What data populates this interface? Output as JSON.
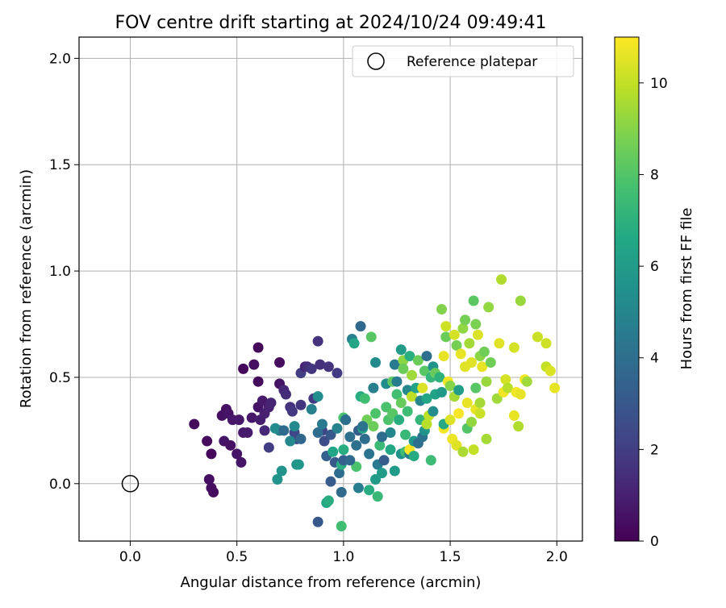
{
  "chart_data": {
    "type": "scatter",
    "title": "FOV centre drift starting at 2024/10/24 09:49:41",
    "xlabel": "Angular distance from reference (arcmin)",
    "ylabel": "Rotation from reference (arcmin)",
    "xlim": [
      -0.24,
      2.12
    ],
    "ylim": [
      -0.27,
      2.1
    ],
    "x_ticks": [
      "0.0",
      "0.5",
      "1.0",
      "1.5",
      "2.0"
    ],
    "y_ticks": [
      "0.0",
      "0.5",
      "1.0",
      "1.5",
      "2.0"
    ],
    "grid": true,
    "legend": {
      "placement": "top-right",
      "entries": [
        "Reference platepar"
      ]
    },
    "colorbar": {
      "label": "Hours from first FF file",
      "range": [
        0,
        11
      ],
      "ticks": [
        "0",
        "2",
        "4",
        "6",
        "8",
        "10"
      ],
      "colormap": "viridis"
    },
    "reference_point": {
      "x": 0.0,
      "y": 0.0
    },
    "series": [
      {
        "values": [
          [
            0.3,
            0.28,
            0.3
          ],
          [
            0.36,
            0.2,
            0.3
          ],
          [
            0.37,
            0.02,
            0.4
          ],
          [
            0.38,
            -0.02,
            0.4
          ],
          [
            0.39,
            -0.04,
            0.3
          ],
          [
            0.38,
            0.14,
            0.2
          ],
          [
            0.43,
            0.32,
            0.5
          ],
          [
            0.44,
            0.2,
            0.6
          ],
          [
            0.45,
            0.35,
            0.4
          ],
          [
            0.46,
            0.33,
            0.6
          ],
          [
            0.47,
            0.18,
            0.5
          ],
          [
            0.48,
            0.3,
            0.7
          ],
          [
            0.5,
            0.14,
            0.6
          ],
          [
            0.51,
            0.3,
            0.7
          ],
          [
            0.52,
            0.1,
            0.6
          ],
          [
            0.53,
            0.24,
            0.8
          ],
          [
            0.53,
            0.54,
            0.2
          ],
          [
            0.55,
            0.24,
            0.8
          ],
          [
            0.57,
            0.31,
            0.7
          ],
          [
            0.58,
            0.56,
            0.4
          ],
          [
            0.6,
            0.64,
            0.2
          ],
          [
            0.6,
            0.48,
            0.3
          ],
          [
            0.6,
            0.36,
            0.6
          ],
          [
            0.61,
            0.3,
            0.9
          ],
          [
            0.62,
            0.39,
            0.8
          ],
          [
            0.63,
            0.33,
            1.0
          ],
          [
            0.63,
            0.25,
            1.2
          ],
          [
            0.65,
            0.36,
            1.0
          ],
          [
            0.66,
            0.38,
            1.1
          ],
          [
            0.65,
            0.17,
            2.0
          ],
          [
            0.7,
            0.57,
            0.3
          ],
          [
            0.7,
            0.47,
            0.6
          ],
          [
            0.72,
            0.44,
            1.2
          ],
          [
            0.73,
            0.42,
            1.4
          ],
          [
            0.75,
            0.36,
            1.6
          ],
          [
            0.76,
            0.34,
            1.8
          ],
          [
            0.77,
            0.24,
            2.3
          ],
          [
            0.78,
            0.21,
            2.4
          ],
          [
            0.8,
            0.37,
            1.7
          ],
          [
            0.8,
            0.52,
            2.0
          ],
          [
            0.82,
            0.55,
            1.0
          ],
          [
            0.83,
            0.55,
            1.4
          ],
          [
            0.85,
            0.54,
            1.7
          ],
          [
            0.86,
            0.4,
            1.9
          ],
          [
            0.88,
            0.67,
            1.6
          ],
          [
            0.89,
            0.56,
            1.5
          ],
          [
            0.9,
            0.25,
            2.3
          ],
          [
            0.91,
            0.2,
            2.5
          ],
          [
            0.93,
            0.55,
            1.6
          ],
          [
            0.94,
            0.23,
            3.0
          ],
          [
            0.96,
            0.1,
            3.0
          ],
          [
            0.97,
            0.52,
            1.9
          ],
          [
            0.88,
            0.41,
            5.3
          ],
          [
            0.7,
            0.25,
            4.6
          ],
          [
            0.68,
            0.26,
            5.3
          ],
          [
            0.69,
            0.02,
            5.6
          ],
          [
            0.71,
            0.06,
            5.6
          ],
          [
            0.75,
            0.2,
            5.1
          ],
          [
            0.77,
            0.27,
            5.2
          ],
          [
            0.78,
            0.09,
            5.6
          ],
          [
            0.79,
            0.09,
            5.8
          ],
          [
            0.85,
            0.35,
            4.8
          ],
          [
            0.88,
            0.24,
            3.9
          ],
          [
            0.9,
            0.28,
            4.5
          ],
          [
            0.92,
            0.13,
            3.3
          ],
          [
            0.92,
            -0.09,
            6.6
          ],
          [
            0.93,
            -0.08,
            6.8
          ],
          [
            0.94,
            0.01,
            3.2
          ],
          [
            0.95,
            0.15,
            6.5
          ],
          [
            0.88,
            -0.18,
            3.0
          ],
          [
            0.99,
            -0.2,
            7.6
          ],
          [
            0.98,
            0.05,
            3.9
          ],
          [
            0.99,
            0.09,
            6.9
          ],
          [
            0.99,
            -0.04,
            3.8
          ],
          [
            1.0,
            0.31,
            7.8
          ],
          [
            1.0,
            0.11,
            3.3
          ],
          [
            1.0,
            0.16,
            6.8
          ],
          [
            1.01,
            0.3,
            4.5
          ],
          [
            1.01,
            0.3,
            4.0
          ],
          [
            1.03,
            0.22,
            4.0
          ],
          [
            1.04,
            0.68,
            4.7
          ],
          [
            1.05,
            0.66,
            6.5
          ],
          [
            1.06,
            0.18,
            4.1
          ],
          [
            1.06,
            0.08,
            7.8
          ],
          [
            1.07,
            0.25,
            3.3
          ],
          [
            1.07,
            -0.02,
            4.6
          ],
          [
            1.08,
            0.74,
            3.7
          ],
          [
            1.08,
            0.41,
            6.8
          ],
          [
            1.09,
            0.26,
            6.5
          ],
          [
            1.1,
            0.4,
            7.6
          ],
          [
            1.1,
            0.21,
            4.0
          ],
          [
            1.11,
            0.3,
            8.6
          ],
          [
            1.12,
            0.14,
            4.2
          ],
          [
            1.12,
            -0.03,
            6.8
          ],
          [
            1.13,
            0.69,
            8.1
          ],
          [
            1.14,
            0.27,
            8.5
          ],
          [
            1.14,
            0.45,
            4.7
          ],
          [
            1.15,
            0.57,
            5.2
          ],
          [
            1.15,
            0.33,
            7.9
          ],
          [
            1.15,
            0.02,
            6.0
          ],
          [
            1.16,
            0.09,
            4.5
          ],
          [
            1.16,
            -0.06,
            7.3
          ],
          [
            1.17,
            0.18,
            7.4
          ],
          [
            1.18,
            0.05,
            6.0
          ],
          [
            1.19,
            0.11,
            3.2
          ],
          [
            1.2,
            0.47,
            5.3
          ],
          [
            1.2,
            0.36,
            7.8
          ],
          [
            1.21,
            0.3,
            7.9
          ],
          [
            1.22,
            0.24,
            5.0
          ],
          [
            1.22,
            0.16,
            6.6
          ],
          [
            1.23,
            0.48,
            8.3
          ],
          [
            1.23,
            0.33,
            8.1
          ],
          [
            1.24,
            0.56,
            4.5
          ],
          [
            1.24,
            0.06,
            6.0
          ],
          [
            1.25,
            0.42,
            7.6
          ],
          [
            1.25,
            0.48,
            4.6
          ],
          [
            1.26,
            0.3,
            6.9
          ],
          [
            1.27,
            0.63,
            6.0
          ],
          [
            1.27,
            0.38,
            8.4
          ],
          [
            1.27,
            0.14,
            5.6
          ],
          [
            1.28,
            0.58,
            9.1
          ],
          [
            1.28,
            0.54,
            8.5
          ],
          [
            1.29,
            0.23,
            7.3
          ],
          [
            1.29,
            0.15,
            7.6
          ],
          [
            1.3,
            0.34,
            7.5
          ],
          [
            1.3,
            0.44,
            5.1
          ],
          [
            1.31,
            0.6,
            6.9
          ],
          [
            1.31,
            0.14,
            4.5
          ],
          [
            1.31,
            0.16,
            10.9
          ],
          [
            1.32,
            0.51,
            9.4
          ],
          [
            1.32,
            0.41,
            9.9
          ],
          [
            1.33,
            0.2,
            5.8
          ],
          [
            1.33,
            0.13,
            6.7
          ],
          [
            1.34,
            0.45,
            6.3
          ],
          [
            1.35,
            0.58,
            8.5
          ],
          [
            1.35,
            0.19,
            4.0
          ],
          [
            1.36,
            0.39,
            5.0
          ],
          [
            1.36,
            0.3,
            7.2
          ],
          [
            1.37,
            0.22,
            4.2
          ],
          [
            1.37,
            0.45,
            10.4
          ],
          [
            1.38,
            0.25,
            5.7
          ],
          [
            1.38,
            0.53,
            8.1
          ],
          [
            1.39,
            0.6,
            4.0
          ],
          [
            1.39,
            0.4,
            6.5
          ],
          [
            1.39,
            0.28,
            9.8
          ],
          [
            1.4,
            0.32,
            9.9
          ],
          [
            1.41,
            0.11,
            7.5
          ],
          [
            1.41,
            0.5,
            7.2
          ],
          [
            1.42,
            0.34,
            5.3
          ],
          [
            1.42,
            0.55,
            5.6
          ],
          [
            1.43,
            0.52,
            8.4
          ],
          [
            1.43,
            0.42,
            6.3
          ],
          [
            1.45,
            0.5,
            7.0
          ],
          [
            1.46,
            0.82,
            8.9
          ],
          [
            1.46,
            0.43,
            5.9
          ],
          [
            1.47,
            0.6,
            10.6
          ],
          [
            1.47,
            0.26,
            10.9
          ],
          [
            1.47,
            0.28,
            6.7
          ],
          [
            1.48,
            0.74,
            10.2
          ],
          [
            1.48,
            0.69,
            8.5
          ],
          [
            1.49,
            0.48,
            10.8
          ],
          [
            1.5,
            0.46,
            9.0
          ],
          [
            1.5,
            0.3,
            10.4
          ],
          [
            1.51,
            0.21,
            10.7
          ],
          [
            1.52,
            0.41,
            9.5
          ],
          [
            1.52,
            0.7,
            10.3
          ],
          [
            1.53,
            0.65,
            8.7
          ],
          [
            1.53,
            0.18,
            10.5
          ],
          [
            1.54,
            0.33,
            10.9
          ],
          [
            1.54,
            0.44,
            6.1
          ],
          [
            1.55,
            0.61,
            10.6
          ],
          [
            1.56,
            0.73,
            9.2
          ],
          [
            1.56,
            0.15,
            9.6
          ],
          [
            1.57,
            0.77,
            8.7
          ],
          [
            1.57,
            0.55,
            10.5
          ],
          [
            1.58,
            0.38,
            10.6
          ],
          [
            1.58,
            0.26,
            8.0
          ],
          [
            1.59,
            0.66,
            9.5
          ],
          [
            1.6,
            0.57,
            10.5
          ],
          [
            1.6,
            0.29,
            9.2
          ],
          [
            1.61,
            0.16,
            10.0
          ],
          [
            1.61,
            0.86,
            8.2
          ],
          [
            1.62,
            0.75,
            8.8
          ],
          [
            1.62,
            0.45,
            8.1
          ],
          [
            1.62,
            0.35,
            10.6
          ],
          [
            1.63,
            0.7,
            10.4
          ],
          [
            1.64,
            0.6,
            9.1
          ],
          [
            1.64,
            0.38,
            9.5
          ],
          [
            1.64,
            0.33,
            10.1
          ],
          [
            1.65,
            0.55,
            10.6
          ],
          [
            1.66,
            0.62,
            8.6
          ],
          [
            1.67,
            0.48,
            9.3
          ],
          [
            1.67,
            0.21,
            9.5
          ],
          [
            1.68,
            0.83,
            9.2
          ],
          [
            1.69,
            0.57,
            8.6
          ],
          [
            1.72,
            0.4,
            9.4
          ],
          [
            1.73,
            0.66,
            10.5
          ],
          [
            1.74,
            0.96,
            9.7
          ],
          [
            1.75,
            0.43,
            10.8
          ],
          [
            1.76,
            0.49,
            10.3
          ],
          [
            1.77,
            0.45,
            9.8
          ],
          [
            1.8,
            0.64,
            10.3
          ],
          [
            1.8,
            0.32,
            10.6
          ],
          [
            1.81,
            0.43,
            10.8
          ],
          [
            1.82,
            0.27,
            9.7
          ],
          [
            1.83,
            0.42,
            10.6
          ],
          [
            1.83,
            0.86,
            9.3
          ],
          [
            1.85,
            0.49,
            10.8
          ],
          [
            1.86,
            0.48,
            9.4
          ],
          [
            1.91,
            0.69,
            10.1
          ],
          [
            1.95,
            0.66,
            10.2
          ],
          [
            1.95,
            0.55,
            10.0
          ],
          [
            1.97,
            0.53,
            10.4
          ],
          [
            1.99,
            0.45,
            10.6
          ],
          [
            1.03,
            0.11,
            3.7
          ],
          [
            1.09,
            0.27,
            4.2
          ],
          [
            1.18,
            0.22,
            3.9
          ],
          [
            0.97,
            0.26,
            4.9
          ],
          [
            0.8,
            0.21,
            3.6
          ],
          [
            0.72,
            0.25,
            3.8
          ]
        ]
      }
    ]
  }
}
